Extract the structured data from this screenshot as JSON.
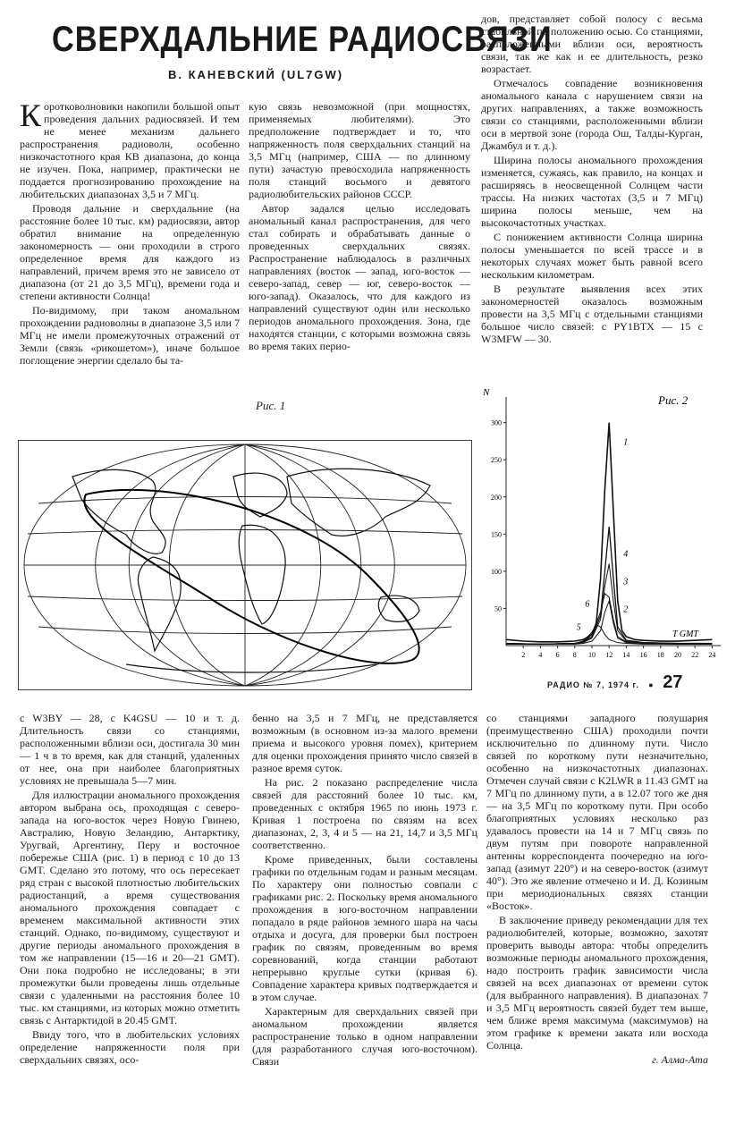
{
  "article": {
    "title": "СВЕРХДАЛЬНИЕ РАДИОСВЯЗИ",
    "author": "В. КАНЕВСКИЙ (UL7GW)",
    "dropcap": "К",
    "col1": [
      "оротковолновики накопили большой опыт проведения дальних радиосвязей. И тем не менее механизм дальнего распространения радиоволн, особенно низкочастотного края КВ диапазона, до конца не изучен. Пока, например, практически не поддается прогнозированию прохождение на любительских диапазонах 3,5 и 7 МГц.",
      "Проводя дальние и сверхдальние (на расстояние более 10 тыс. км) радиосвязи, автор обратил внимание на определенную закономерность — они проходили в строго определенное время для каждого из направлений, причем время это не зависело от диапазона (от 21 до 3,5 МГц), времени года и степени активности Солнца!",
      "По-видимому, при таком аномальном прохождении радиоволны в диапазоне 3,5 или 7 МГц не имели промежуточных отражений от Земли (связь «рикошетом»), иначе большое поглощение энергии сделало бы та-"
    ],
    "col2": [
      "кую связь невозможной (при мощностях, применяемых любителями). Это предположение подтверждает и то, что напряженность поля сверхдальних станций на 3,5 МГц (например, США — по длинному пути) зачастую превосходила напряженность поля станций восьмого и девятого радиолюбительских районов СССР.",
      "Автор задался целью исследовать аномальный канал распространения, для чего стал собирать и обрабатывать данные о проведенных сверхдальних связях. Распространение наблюдалось в различных направлениях (восток — запад, юго-восток — северо-запад, север — юг, северо-восток — юго-запад). Оказалось, что для каждого из направлений существуют один или несколько периодов аномального прохождения. Зона, где находятся станции, с которыми возможна связь во время таких перио-"
    ],
    "col3": [
      "дов, представляет собой полосу с весьма стабильной по положению осью. Со станциями, расположенными вблизи оси, вероятность связи, так же как и ее длительность, резко возрастает.",
      "Отмечалось совпадение возникновения аномального канала с нарушением связи на других направлениях, а также возможность связи со станциями, расположенными вблизи оси в мертвой зоне (города Ош, Талды-Курган, Джамбул и т. д.).",
      "Ширина полосы аномального прохождения изменяется, сужаясь, как правило, на концах и расширяясь в неосвещенной Солнцем части трассы. На низких частотах (3,5 и 7 МГц) ширина полосы меньше, чем на высокочастотных участках.",
      "С понижением активности Солнца ширина полосы уменьшается по всей трассе и в некоторых случаях может быть равной всего нескольким километрам.",
      "В результате выявления всех этих закономерностей оказалось возможным провести на 3,5 МГц с отдельными станциями большое число связей: с PY1BTX — 15 с W3MFW — 30."
    ],
    "col4": [
      "с W3BY — 28, с K4GSU — 10 и т. д. Длительность связи со станциями, расположенными вблизи оси, достигала 30 мин — 1 ч в то время, как для станций, удаленных от нее, она при наиболее благоприятных условиях не превышала 5—7 мин.",
      "Для иллюстрации аномального прохождения автором выбрана ось, проходящая с северо-запада на юго-восток через Новую Гвинею, Австралию, Новую Зеландию, Антарктику, Уругвай, Аргентину, Перу и восточное побережье США (рис. 1) в период с 10 до 13 GMT. Сделано это потому, что ось пересекает ряд стран с высокой плотностью любительских радиостанций, а время существования аномального прохождения совпадает с временем максимальной активности этих станций. Однако, по-видимому, существуют и другие периоды аномального прохождения в том же направлении (15—16 и 20—21 GMT). Они пока подробно не исследованы; в эти промежутки были проведены лишь отдельные связи с удаленными на расстояния более 10 тыс. км станциями, из которых можно отметить связь с Антарктидой в 20.45 GMT.",
      "Ввиду того, что в любительских условиях определение напряженности поля при сверхдальних связях, осо-"
    ],
    "col5": [
      "бенно на 3,5 и 7 МГц, не представляется возможным (в основном из-за малого времени приема и высокого уровня помех), критерием для оценки прохождения принято число связей в разное время суток.",
      "На рис. 2 показано распределение числа связей для расстояний более 10 тыс. км, проведенных с октября 1965 по июнь 1973 г. Кривая 1 построена по связям на всех диапазонах, 2, 3, 4 и 5 — на 21, 14,7 и 3,5 МГц соответственно.",
      "Кроме приведенных, были составлены графики по отдельным годам и разным месяцам. По характеру они полностью совпали с графиками рис. 2. Поскольку время аномального прохождения в юго-восточном направлении попадало в ряде районов земного шара на часы отдыха и досуга, для проверки был построен график по связям, проведенным во время соревнований, когда станции работают непрерывно круглые сутки (кривая 6). Совпадение характера кривых подтверждается и в этом случае.",
      "Характерным для сверхдальних связей при аномальном прохождении является распространение только в одном направлении (для разработанного случая юго-восточном). Связи"
    ],
    "col6": [
      "со станциями западного полушария (преимущественно США) проходили почти исключительно по длинному пути. Число связей по короткому пути незначительно, особенно на низкочастотных диапазонах. Отмечен случай связи с K2LWR в 11.43 GMT на 7 МГц по длинному пути, а в 12.07 того же дня — на 3,5 МГц по короткому пути. При особо благоприятных условиях несколько раз удавалось провести на 14 и 7 МГц связь по двум путям при повороте направленной антенны корреспондента поочередно на юго-запад (азимут 220°) и на северо-восток (азимут 40°). Это же явление отмечено и И. Д. Козиным при мериодиональных связях станции «Восток».",
      "В заключение приведу рекомендации для тех радиолюбителей, которые, возможно, захотят проверить выводы автора: чтобы определить возможные периоды аномального прохождения, надо построить график зависимости числа связей на всех диапазонах от времени суток (для выбранного направления). В диапазонах 7 и 3,5 МГц вероятность связей будет тем выше, чем ближе время максимума (максимумов) на этом графике к времени заката или восхода Солнца."
    ],
    "signoff": "г. Алма-Ата"
  },
  "figures": {
    "fig1_caption": "Рис. 1",
    "fig2_caption": "Рис. 2"
  },
  "footer": {
    "magazine": "РАДИО № 7, 1974 г.",
    "page_number": "27"
  },
  "chart_data": {
    "type": "line",
    "title": "",
    "xlabel": "T GMT",
    "ylabel": "N",
    "xlim": [
      0,
      25
    ],
    "ylim": [
      0,
      320
    ],
    "x_ticks": [
      2,
      4,
      6,
      8,
      10,
      12,
      14,
      16,
      18,
      20,
      22,
      24
    ],
    "y_ticks": [
      50,
      100,
      150,
      200,
      250,
      300
    ],
    "series": [
      {
        "name": "1",
        "x": [
          0,
          2,
          4,
          6,
          8,
          9,
          10,
          10.5,
          11,
          11.5,
          12,
          12.5,
          13,
          13.5,
          14,
          15,
          16,
          18,
          20,
          22,
          24
        ],
        "values": [
          8,
          6,
          5,
          5,
          6,
          8,
          15,
          30,
          90,
          210,
          300,
          180,
          60,
          20,
          12,
          8,
          7,
          6,
          6,
          7,
          8
        ]
      },
      {
        "name": "2",
        "x": [
          0,
          4,
          8,
          9,
          10,
          11,
          11.5,
          12,
          12.5,
          13,
          14,
          16,
          20,
          24
        ],
        "values": [
          3,
          2,
          2,
          3,
          6,
          20,
          45,
          60,
          30,
          10,
          4,
          3,
          2,
          3
        ]
      },
      {
        "name": "3",
        "x": [
          0,
          4,
          8,
          9,
          10,
          11,
          11.5,
          12,
          12.5,
          13,
          14,
          16,
          20,
          24
        ],
        "values": [
          3,
          2,
          3,
          4,
          10,
          35,
          80,
          110,
          60,
          20,
          6,
          4,
          3,
          3
        ]
      },
      {
        "name": "4",
        "x": [
          0,
          4,
          8,
          9,
          10,
          11,
          11.5,
          12,
          12.5,
          13,
          14,
          16,
          20,
          24
        ],
        "values": [
          3,
          2,
          3,
          5,
          12,
          40,
          100,
          160,
          90,
          25,
          7,
          4,
          3,
          3
        ]
      },
      {
        "name": "5",
        "x": [
          0,
          4,
          8,
          9,
          10,
          10.5,
          11,
          11.5,
          12,
          13,
          14,
          16,
          20,
          24
        ],
        "values": [
          2,
          2,
          3,
          6,
          18,
          28,
          25,
          15,
          8,
          4,
          3,
          2,
          2,
          2
        ]
      },
      {
        "name": "6",
        "x": [
          0,
          4,
          8,
          9,
          10,
          11,
          11.5,
          12,
          12.5,
          13,
          14,
          16,
          20,
          24
        ],
        "values": [
          2,
          2,
          3,
          5,
          15,
          45,
          70,
          65,
          35,
          12,
          5,
          3,
          2,
          2
        ]
      }
    ]
  }
}
